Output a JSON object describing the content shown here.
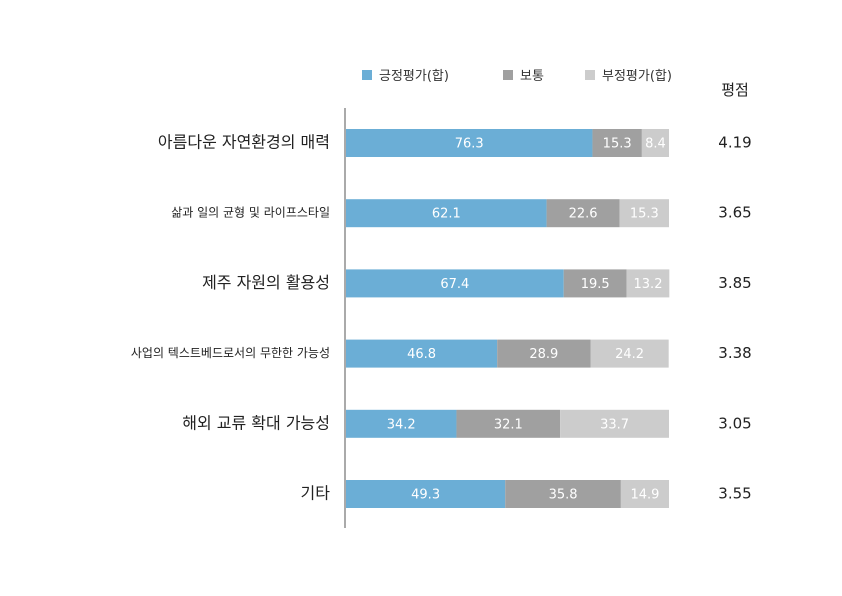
{
  "chart_data": {
    "type": "bar",
    "orientation": "horizontal",
    "stacked": true,
    "categories": [
      "아름다운 자연환경의 매력",
      "삶과 일의 균형 및 라이프스타일",
      "제주 자원의 활용성",
      "사업의 텍스트베드로서의 무한한 가능성",
      "해외 교류 확대 가능성",
      "기타"
    ],
    "series": [
      {
        "name": "긍정평가(합)",
        "color": "#6baed6",
        "values": [
          76.3,
          62.1,
          67.4,
          46.8,
          34.2,
          49.3
        ],
        "labels": [
          "76.3",
          "62.1",
          "67.4",
          "46.8",
          "34.2",
          "49.3"
        ]
      },
      {
        "name": "보통",
        "color": "#a0a0a0",
        "values": [
          15.3,
          22.6,
          19.5,
          28.9,
          32.1,
          35.8
        ],
        "labels": [
          "15.3",
          "22.6",
          "19.5",
          "28.9",
          "32.1",
          "35.8"
        ]
      },
      {
        "name": "부정평가(합)",
        "color": "#cccccc",
        "values": [
          8.4,
          15.3,
          13.2,
          24.2,
          33.7,
          14.9
        ],
        "labels": [
          "8.4",
          "15.3",
          "13.2",
          "24.2",
          "33.7",
          "14.9"
        ]
      }
    ],
    "score_header": "평점",
    "scores": [
      "4.19",
      "3.65",
      "3.85",
      "3.38",
      "3.05",
      "3.55"
    ],
    "xlim": [
      0,
      100
    ],
    "grid": false,
    "legend_position": "top"
  }
}
